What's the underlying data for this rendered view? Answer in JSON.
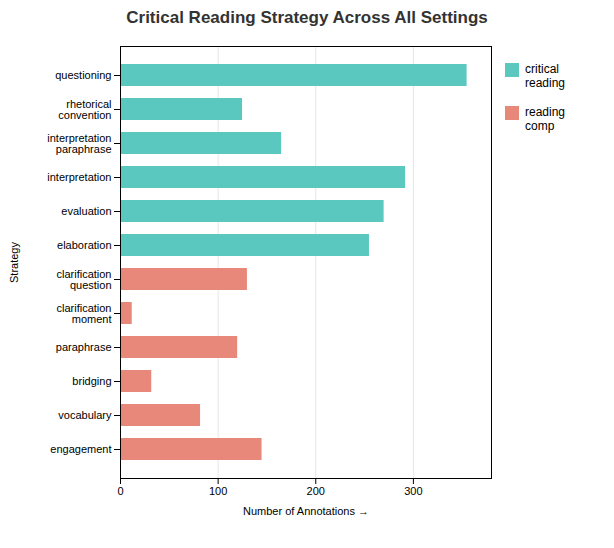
{
  "chart_data": {
    "type": "bar",
    "orientation": "horizontal",
    "title": "Critical Reading Strategy Across All Settings",
    "xlabel": "Number of Annotations",
    "ylabel": "Strategy",
    "categories": [
      "questioning",
      "rhetorical\nconvention",
      "interpretation\nparaphrase",
      "interpretation",
      "evaluation",
      "elaboration",
      "clarification\nquestion",
      "clarification\nmoment",
      "paraphrase",
      "bridging",
      "vocabulary",
      "engagement"
    ],
    "series": [
      {
        "name": "critical\nreading",
        "color": "#5bc8c0",
        "values": [
          355,
          125,
          165,
          292,
          270,
          255,
          null,
          null,
          null,
          null,
          null,
          null
        ]
      },
      {
        "name": "reading\ncomp",
        "color": "#e8887a",
        "values": [
          null,
          null,
          null,
          null,
          null,
          null,
          130,
          12,
          120,
          32,
          82,
          145
        ]
      }
    ],
    "xlim": [
      0,
      380
    ],
    "xticks": [
      0,
      100,
      200,
      300
    ],
    "grid": true,
    "legend": "right"
  }
}
